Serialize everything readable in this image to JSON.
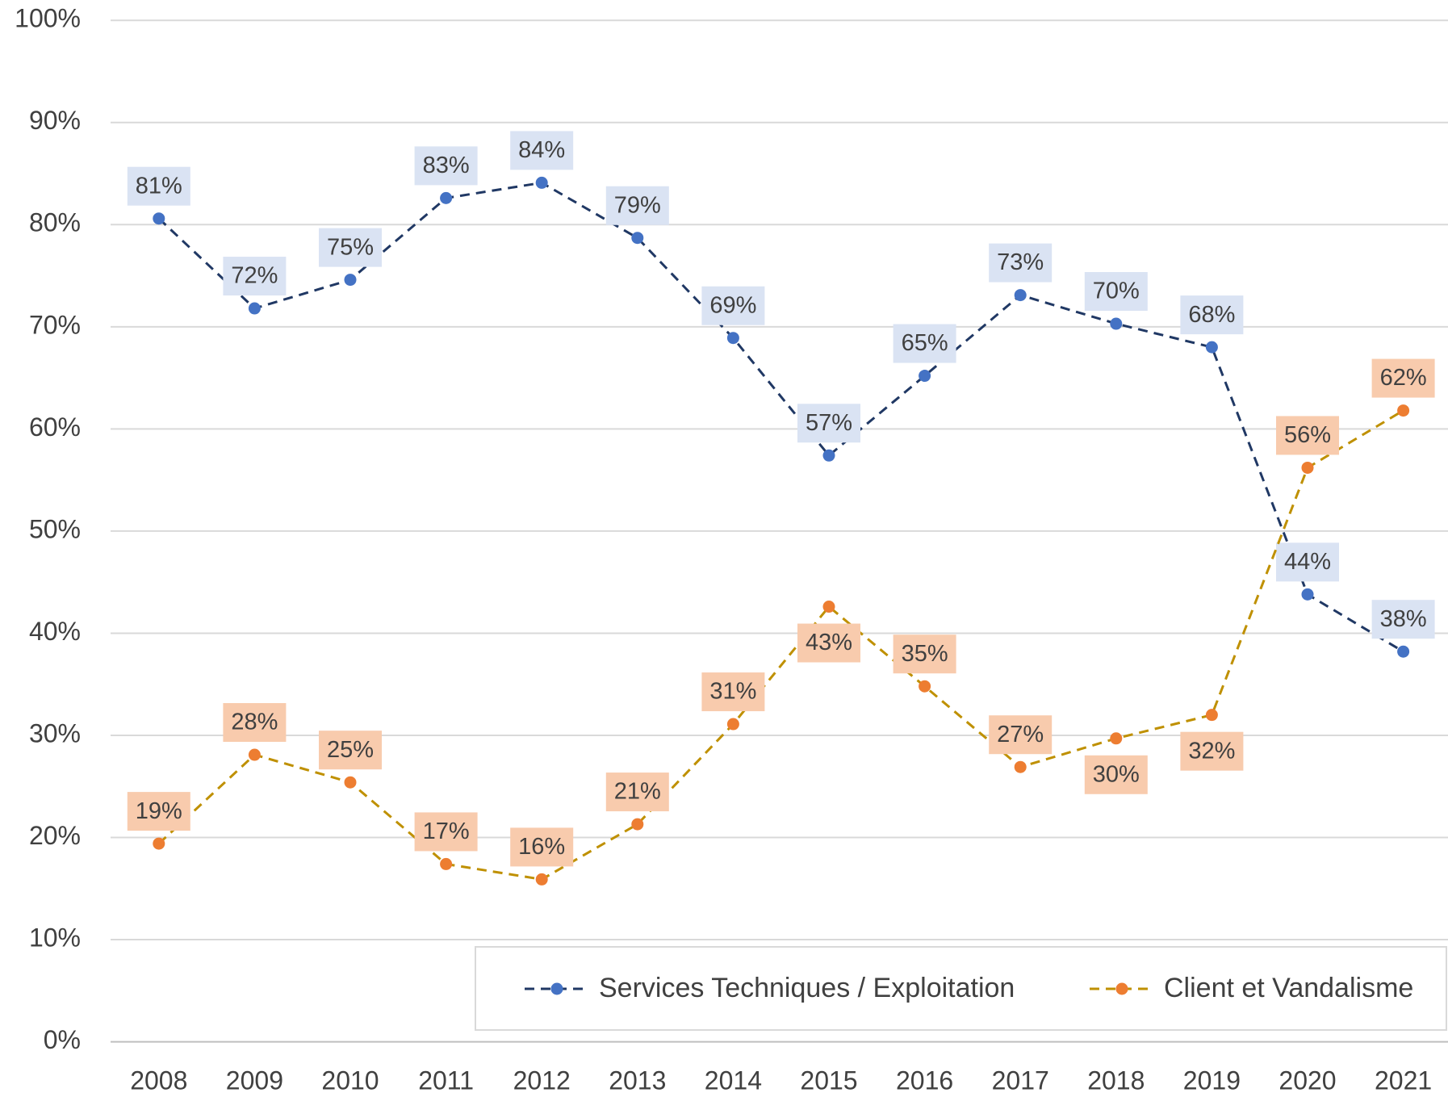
{
  "chart_data": {
    "type": "line",
    "categories": [
      "2008",
      "2009",
      "2010",
      "2011",
      "2012",
      "2013",
      "2014",
      "2015",
      "2016",
      "2017",
      "2018",
      "2019",
      "2020",
      "2021"
    ],
    "series": [
      {
        "name": "Services Techniques / Exploitation",
        "color": "#203864",
        "marker_color": "#4472c4",
        "label_color": "#dae3f3",
        "values": [
          80.6,
          71.8,
          74.6,
          82.6,
          84.1,
          78.7,
          68.9,
          57.4,
          65.2,
          73.1,
          70.3,
          68.0,
          43.8,
          38.2
        ],
        "value_labels": [
          "81%",
          "72%",
          "75%",
          "83%",
          "84%",
          "79%",
          "69%",
          "57%",
          "65%",
          "73%",
          "70%",
          "68%",
          "44%",
          "38%"
        ]
      },
      {
        "name": "Client et Vandalisme",
        "color": "#bf9000",
        "marker_color": "#ed7d31",
        "label_color": "#f8cbad",
        "values": [
          19.4,
          28.1,
          25.4,
          17.4,
          15.9,
          21.3,
          31.1,
          42.6,
          34.8,
          26.9,
          29.7,
          32.0,
          56.2,
          61.8
        ],
        "value_labels": [
          "19%",
          "28%",
          "25%",
          "17%",
          "16%",
          "21%",
          "31%",
          "43%",
          "35%",
          "27%",
          "30%",
          "32%",
          "56%",
          "62%"
        ]
      }
    ],
    "ylim": [
      0,
      100
    ],
    "yticks": [
      {
        "value": 0,
        "label": "0%"
      },
      {
        "value": 10,
        "label": "10%"
      },
      {
        "value": 20,
        "label": "20%"
      },
      {
        "value": 30,
        "label": "30%"
      },
      {
        "value": 40,
        "label": "40%"
      },
      {
        "value": 50,
        "label": "50%"
      },
      {
        "value": 60,
        "label": "60%"
      },
      {
        "value": 70,
        "label": "70%"
      },
      {
        "value": 80,
        "label": "80%"
      },
      {
        "value": 90,
        "label": "90%"
      },
      {
        "value": 100,
        "label": "100%"
      }
    ],
    "grid": true,
    "legend": "bottom-right",
    "line_style": "dashed"
  }
}
